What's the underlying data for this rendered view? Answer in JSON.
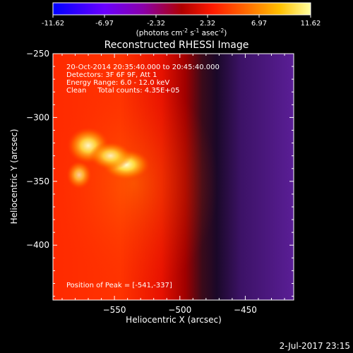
{
  "chart_data": {
    "type": "heatmap",
    "title": "Reconstructed RHESSI Image",
    "xlabel": "Heliocentric X (arcsec)",
    "ylabel": "Heliocentric Y (arcsec)",
    "xlim": [
      -597,
      -413
    ],
    "ylim": [
      -443,
      -250
    ],
    "x_ticks": [
      -550,
      -500,
      -450
    ],
    "y_ticks": [
      -250,
      -300,
      -350,
      -400
    ],
    "colorbar": {
      "ticks": [
        "-11.62",
        "-6.97",
        "-2.32",
        "2.32",
        "6.97",
        "11.62"
      ],
      "range": [
        -11.62,
        11.62
      ],
      "unit_label": "(photons cm",
      "unit_sup1": "-2",
      "unit_mid": " s",
      "unit_sup2": "-1",
      "unit_mid2": " asec",
      "unit_sup3": "-2",
      "unit_end": ")"
    },
    "annotations": [
      "20-Oct-2014 20:35:40.000 to 20:45:40.000",
      "Detectors: 3F 6F 9F, Att 1",
      "Energy Range: 6.0 - 12.0 keV",
      "Clean     Total counts: 4.35E+05"
    ],
    "peak_label": "Position of Peak = [-541,-337]",
    "peak": [
      -541,
      -337
    ],
    "sources": [
      {
        "x": -541,
        "y": -337,
        "level": 1.0
      },
      {
        "x": -570,
        "y": -322,
        "level": 0.95
      },
      {
        "x": -553,
        "y": -330,
        "level": 0.9
      },
      {
        "x": -577,
        "y": -345,
        "level": 0.75
      }
    ]
  },
  "footer": {
    "timestamp": "2-Jul-2017 23:15"
  }
}
